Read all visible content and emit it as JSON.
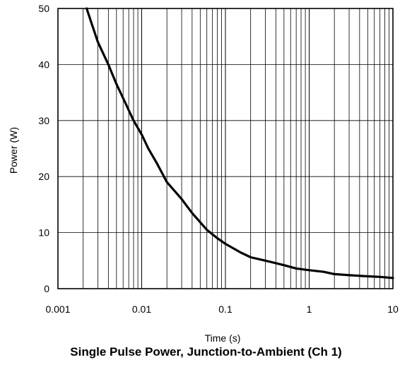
{
  "chart_data": {
    "type": "line",
    "title": "Single Pulse Power, Junction-to-Ambient (Ch 1)",
    "xlabel": "Time (s)",
    "ylabel": "Power (W)",
    "x_scale": "log",
    "xlim": [
      0.001,
      10
    ],
    "ylim": [
      0,
      50
    ],
    "grid": true,
    "x_ticks": [
      "0.001",
      "0.01",
      "0.1",
      "1",
      "10"
    ],
    "y_ticks": [
      "0",
      "10",
      "20",
      "30",
      "40",
      "50"
    ],
    "series": [
      {
        "x": [
          0.0022,
          0.0025,
          0.003,
          0.004,
          0.005,
          0.006,
          0.008,
          0.01,
          0.012,
          0.015,
          0.02,
          0.03,
          0.04,
          0.06,
          0.08,
          0.1,
          0.15,
          0.2,
          0.3,
          0.5,
          0.7,
          1,
          1.5,
          2,
          3,
          5,
          7,
          10
        ],
        "y": [
          50,
          47.5,
          44,
          40,
          36.5,
          34,
          30,
          27.5,
          25,
          22.5,
          19,
          16,
          13.5,
          10.5,
          9,
          8,
          6.5,
          5.6,
          5,
          4.2,
          3.6,
          3.3,
          3,
          2.6,
          2.4,
          2.2,
          2.1,
          1.9
        ]
      }
    ]
  }
}
